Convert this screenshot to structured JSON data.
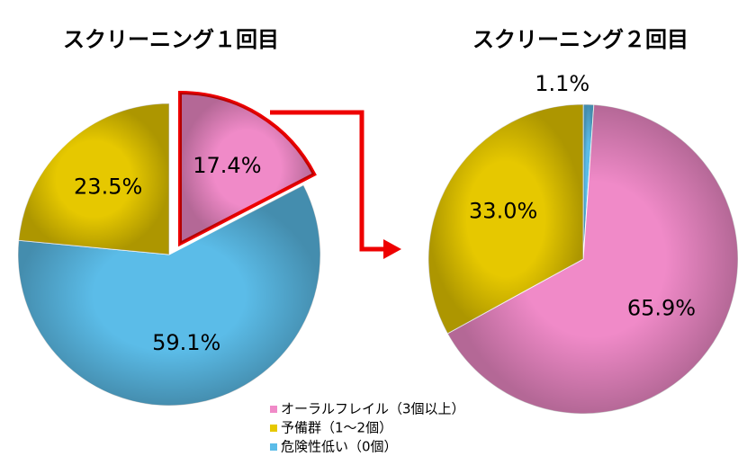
{
  "legend": {
    "names": [
      "オーラルフレイル（3個以上）",
      "予備群（1～2個）",
      "危険性低い（0個）"
    ],
    "colors": [
      "#f08ac8",
      "#e6c800",
      "#5bbce8"
    ]
  },
  "chart_data": [
    {
      "type": "pie",
      "title": "スクリーニング１回目",
      "values": [
        17.4,
        23.5,
        59.1
      ],
      "value_labels": [
        "17.4%",
        "23.5%",
        "59.1%"
      ]
    },
    {
      "type": "pie",
      "title": "スクリーニング２回目",
      "values": [
        65.9,
        33.0,
        1.1
      ],
      "value_labels": [
        "65.9%",
        "33.0%",
        "1.1%"
      ]
    }
  ]
}
